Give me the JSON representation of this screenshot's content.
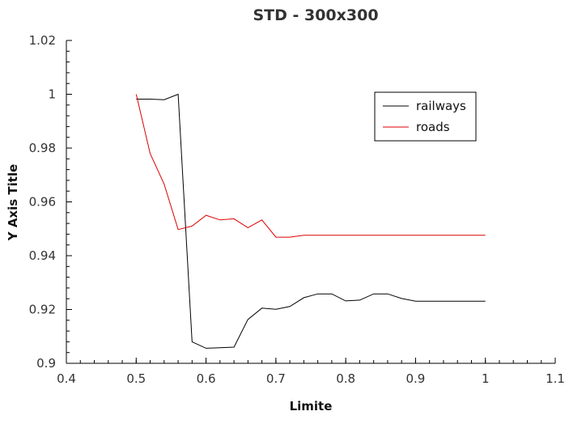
{
  "chart_data": {
    "type": "line",
    "title": "STD - 300x300",
    "xlabel": "Limite",
    "ylabel": "Y Axis Title",
    "xlim": [
      0.4,
      1.1
    ],
    "ylim": [
      0.9,
      1.02
    ],
    "xticks": [
      "0.4",
      "0.5",
      "0.6",
      "0.7",
      "0.8",
      "0.9",
      "1",
      "1.1"
    ],
    "yticks": [
      "0.9",
      "0.92",
      "0.94",
      "0.96",
      "0.98",
      "1",
      "1.02"
    ],
    "grid": false,
    "legend": "top-right",
    "series": [
      {
        "name": "railways",
        "color": "#000000",
        "x": [
          0.5,
          0.52,
          0.54,
          0.56,
          0.58,
          0.6,
          0.62,
          0.64,
          0.66,
          0.68,
          0.7,
          0.72,
          0.74,
          0.76,
          0.78,
          0.8,
          0.82,
          0.84,
          0.86,
          0.88,
          0.9,
          0.92,
          0.94,
          0.96,
          0.98,
          1.0
        ],
        "y": [
          0.9982,
          0.9982,
          0.998,
          1.0,
          0.908,
          0.9056,
          0.9058,
          0.906,
          0.9163,
          0.9205,
          0.9201,
          0.9211,
          0.9244,
          0.9258,
          0.9258,
          0.9232,
          0.9235,
          0.9258,
          0.9258,
          0.9241,
          0.9231,
          0.9231,
          0.9231,
          0.9231,
          0.9231,
          0.9231
        ]
      },
      {
        "name": "roads",
        "color": "#dd0000",
        "x": [
          0.5,
          0.52,
          0.54,
          0.56,
          0.58,
          0.6,
          0.62,
          0.64,
          0.66,
          0.68,
          0.7,
          0.72,
          0.74,
          0.76,
          0.78,
          0.8,
          0.82,
          0.84,
          0.86,
          0.88,
          0.9,
          0.92,
          0.94,
          0.96,
          0.98,
          1.0
        ],
        "y": [
          1.0,
          0.978,
          0.9666,
          0.9497,
          0.951,
          0.955,
          0.9533,
          0.9537,
          0.9504,
          0.9533,
          0.9469,
          0.9469,
          0.9476,
          0.9476,
          0.9476,
          0.9476,
          0.9476,
          0.9476,
          0.9476,
          0.9476,
          0.9476,
          0.9476,
          0.9476,
          0.9476,
          0.9476,
          0.9476
        ]
      }
    ]
  }
}
